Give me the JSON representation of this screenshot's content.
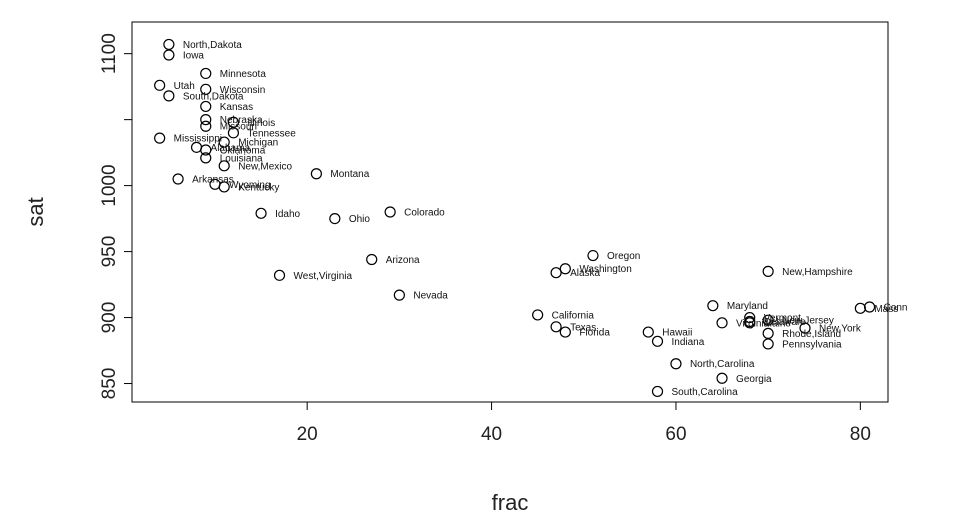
{
  "chart_data": {
    "type": "scatter",
    "title": "",
    "xlabel": "frac",
    "ylabel": "sat",
    "xlim": [
      1,
      83
    ],
    "ylim": [
      836,
      1124
    ],
    "xticks": [
      20,
      40,
      60,
      80
    ],
    "yticks": [
      850,
      900,
      950,
      1000,
      1050,
      1100
    ],
    "ytick_labels_shown": [
      "850",
      "900",
      "950",
      "1000",
      "1100"
    ],
    "grid": false,
    "legend": "none",
    "marker": "open-circle",
    "points": [
      {
        "label": "North,Dakota",
        "x": 5,
        "y": 1107
      },
      {
        "label": "Iowa",
        "x": 5,
        "y": 1099
      },
      {
        "label": "Minnesota",
        "x": 9,
        "y": 1085
      },
      {
        "label": "Utah",
        "x": 4,
        "y": 1076
      },
      {
        "label": "Wisconsin",
        "x": 9,
        "y": 1073
      },
      {
        "label": "South,Dakota",
        "x": 5,
        "y": 1068
      },
      {
        "label": "Kansas",
        "x": 9,
        "y": 1060
      },
      {
        "label": "Nebraska",
        "x": 9,
        "y": 1050
      },
      {
        "label": "Illinois",
        "x": 12,
        "y": 1048
      },
      {
        "label": "Missouri",
        "x": 9,
        "y": 1045
      },
      {
        "label": "Tennessee",
        "x": 12,
        "y": 1040
      },
      {
        "label": "Mississippi",
        "x": 4,
        "y": 1036
      },
      {
        "label": "Michigan",
        "x": 11,
        "y": 1033
      },
      {
        "label": "Alabama",
        "x": 8,
        "y": 1029
      },
      {
        "label": "Oklahoma",
        "x": 9,
        "y": 1027
      },
      {
        "label": "Louisiana",
        "x": 9,
        "y": 1021
      },
      {
        "label": "New,Mexico",
        "x": 11,
        "y": 1015
      },
      {
        "label": "Montana",
        "x": 21,
        "y": 1009
      },
      {
        "label": "Arkansas",
        "x": 6,
        "y": 1005
      },
      {
        "label": "Wyoming",
        "x": 10,
        "y": 1001
      },
      {
        "label": "Kentucky",
        "x": 11,
        "y": 999
      },
      {
        "label": "Idaho",
        "x": 15,
        "y": 979
      },
      {
        "label": "Ohio",
        "x": 23,
        "y": 975
      },
      {
        "label": "Colorado",
        "x": 29,
        "y": 980
      },
      {
        "label": "Oregon",
        "x": 51,
        "y": 947
      },
      {
        "label": "Arizona",
        "x": 27,
        "y": 944
      },
      {
        "label": "Washington",
        "x": 48,
        "y": 937
      },
      {
        "label": "Alaska",
        "x": 47,
        "y": 934
      },
      {
        "label": "New,Hampshire",
        "x": 70,
        "y": 935
      },
      {
        "label": "West,Virginia",
        "x": 17,
        "y": 932
      },
      {
        "label": "Nevada",
        "x": 30,
        "y": 917
      },
      {
        "label": "Maryland",
        "x": 64,
        "y": 909
      },
      {
        "label": "Mass",
        "x": 80,
        "y": 907
      },
      {
        "label": "Conn",
        "x": 81,
        "y": 908
      },
      {
        "label": "California",
        "x": 45,
        "y": 902
      },
      {
        "label": "Vermont",
        "x": 68,
        "y": 900
      },
      {
        "label": "Delaware",
        "x": 68,
        "y": 897
      },
      {
        "label": "New,Jersey",
        "x": 70,
        "y": 898
      },
      {
        "label": "Virginia",
        "x": 65,
        "y": 896
      },
      {
        "label": "Maine",
        "x": 68,
        "y": 896
      },
      {
        "label": "New,York",
        "x": 74,
        "y": 892
      },
      {
        "label": "Texas",
        "x": 47,
        "y": 893
      },
      {
        "label": "Florida",
        "x": 48,
        "y": 889
      },
      {
        "label": "Hawaii",
        "x": 57,
        "y": 889
      },
      {
        "label": "Rhode,Island",
        "x": 70,
        "y": 888
      },
      {
        "label": "Indiana",
        "x": 58,
        "y": 882
      },
      {
        "label": "Pennsylvania",
        "x": 70,
        "y": 880
      },
      {
        "label": "North,Carolina",
        "x": 60,
        "y": 865
      },
      {
        "label": "Georgia",
        "x": 65,
        "y": 854
      },
      {
        "label": "South,Carolina",
        "x": 58,
        "y": 844
      }
    ]
  }
}
